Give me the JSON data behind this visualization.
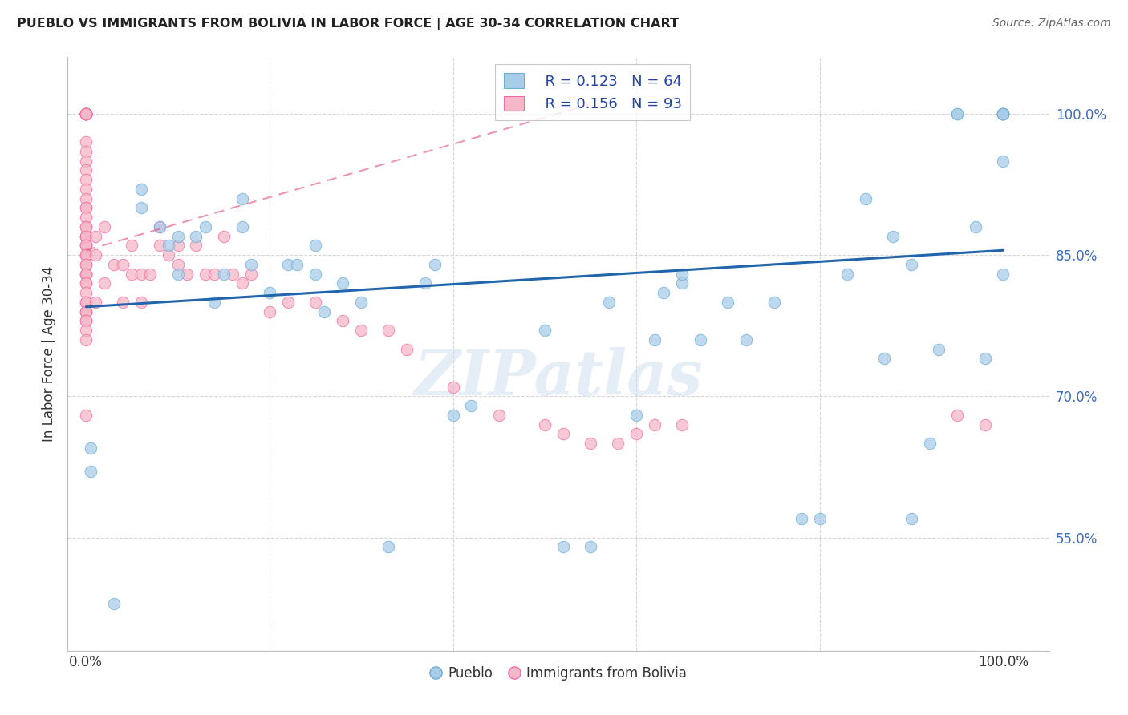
{
  "title": "PUEBLO VS IMMIGRANTS FROM BOLIVIA IN LABOR FORCE | AGE 30-34 CORRELATION CHART",
  "source": "Source: ZipAtlas.com",
  "ylabel": "In Labor Force | Age 30-34",
  "xlim": [
    -0.02,
    1.05
  ],
  "ylim": [
    0.43,
    1.06
  ],
  "ytick_labels": [
    "55.0%",
    "70.0%",
    "85.0%",
    "100.0%"
  ],
  "ytick_values": [
    0.55,
    0.7,
    0.85,
    1.0
  ],
  "watermark": "ZIPatlas",
  "legend_R_blue": "R = 0.123",
  "legend_N_blue": "N = 64",
  "legend_R_pink": "R = 0.156",
  "legend_N_pink": "N = 93",
  "blue_color": "#a8cde8",
  "pink_color": "#f4b8c8",
  "blue_edge": "#6baed6",
  "pink_edge": "#f768a1",
  "trendline_blue_color": "#2166ac",
  "trendline_pink_color": "#e05080",
  "blue_scatter_x": [
    0.005,
    0.005,
    0.03,
    0.06,
    0.06,
    0.08,
    0.09,
    0.1,
    0.1,
    0.12,
    0.13,
    0.14,
    0.15,
    0.17,
    0.17,
    0.18,
    0.2,
    0.22,
    0.23,
    0.25,
    0.25,
    0.26,
    0.28,
    0.3,
    0.33,
    0.37,
    0.38,
    0.4,
    0.42,
    0.5,
    0.52,
    0.55,
    0.57,
    0.6,
    0.62,
    0.63,
    0.65,
    0.65,
    0.67,
    0.7,
    0.72,
    0.75,
    0.78,
    0.8,
    0.83,
    0.85,
    0.87,
    0.88,
    0.9,
    0.9,
    0.92,
    0.93,
    0.95,
    0.95,
    0.97,
    0.98,
    1.0,
    1.0,
    1.0,
    1.0,
    1.0,
    1.0,
    1.0,
    1.0
  ],
  "blue_scatter_y": [
    0.645,
    0.62,
    0.48,
    0.92,
    0.9,
    0.88,
    0.86,
    0.87,
    0.83,
    0.87,
    0.88,
    0.8,
    0.83,
    0.91,
    0.88,
    0.84,
    0.81,
    0.84,
    0.84,
    0.86,
    0.83,
    0.79,
    0.82,
    0.8,
    0.54,
    0.82,
    0.84,
    0.68,
    0.69,
    0.77,
    0.54,
    0.54,
    0.8,
    0.68,
    0.76,
    0.81,
    0.82,
    0.83,
    0.76,
    0.8,
    0.76,
    0.8,
    0.57,
    0.57,
    0.83,
    0.91,
    0.74,
    0.87,
    0.84,
    0.57,
    0.65,
    0.75,
    1.0,
    1.0,
    0.88,
    0.74,
    1.0,
    1.0,
    1.0,
    1.0,
    1.0,
    1.0,
    0.95,
    0.83
  ],
  "pink_scatter_x": [
    0.0,
    0.0,
    0.0,
    0.0,
    0.0,
    0.0,
    0.0,
    0.0,
    0.0,
    0.0,
    0.0,
    0.0,
    0.0,
    0.0,
    0.0,
    0.0,
    0.0,
    0.0,
    0.0,
    0.0,
    0.0,
    0.0,
    0.0,
    0.0,
    0.0,
    0.0,
    0.0,
    0.0,
    0.0,
    0.0,
    0.0,
    0.0,
    0.0,
    0.0,
    0.0,
    0.0,
    0.0,
    0.0,
    0.0,
    0.0,
    0.0,
    0.0,
    0.0,
    0.0,
    0.0,
    0.0,
    0.0,
    0.0,
    0.0,
    0.01,
    0.01,
    0.01,
    0.02,
    0.02,
    0.03,
    0.04,
    0.04,
    0.05,
    0.05,
    0.06,
    0.06,
    0.07,
    0.08,
    0.08,
    0.09,
    0.1,
    0.1,
    0.11,
    0.12,
    0.13,
    0.14,
    0.15,
    0.16,
    0.17,
    0.18,
    0.2,
    0.22,
    0.25,
    0.28,
    0.3,
    0.33,
    0.35,
    0.4,
    0.45,
    0.5,
    0.52,
    0.55,
    0.58,
    0.6,
    0.62,
    0.65,
    0.95,
    0.98
  ],
  "pink_scatter_y": [
    1.0,
    1.0,
    1.0,
    1.0,
    1.0,
    1.0,
    1.0,
    1.0,
    1.0,
    1.0,
    0.97,
    0.96,
    0.95,
    0.94,
    0.93,
    0.92,
    0.91,
    0.9,
    0.9,
    0.89,
    0.88,
    0.87,
    0.87,
    0.86,
    0.86,
    0.85,
    0.85,
    0.84,
    0.83,
    0.88,
    0.87,
    0.86,
    0.85,
    0.84,
    0.83,
    0.83,
    0.82,
    0.82,
    0.81,
    0.8,
    0.79,
    0.8,
    0.79,
    0.79,
    0.78,
    0.78,
    0.77,
    0.76,
    0.68,
    0.87,
    0.85,
    0.8,
    0.88,
    0.82,
    0.84,
    0.84,
    0.8,
    0.86,
    0.83,
    0.83,
    0.8,
    0.83,
    0.88,
    0.86,
    0.85,
    0.86,
    0.84,
    0.83,
    0.86,
    0.83,
    0.83,
    0.87,
    0.83,
    0.82,
    0.83,
    0.79,
    0.8,
    0.8,
    0.78,
    0.77,
    0.77,
    0.75,
    0.71,
    0.68,
    0.67,
    0.66,
    0.65,
    0.65,
    0.66,
    0.67,
    0.67,
    0.68,
    0.67
  ],
  "blue_trend_x": [
    0.0,
    1.0
  ],
  "blue_trend_y": [
    0.795,
    0.855
  ],
  "pink_trend_x": [
    0.0,
    0.55
  ],
  "pink_trend_y": [
    0.855,
    1.01
  ],
  "grid_color": "#cccccc",
  "background_color": "#ffffff"
}
